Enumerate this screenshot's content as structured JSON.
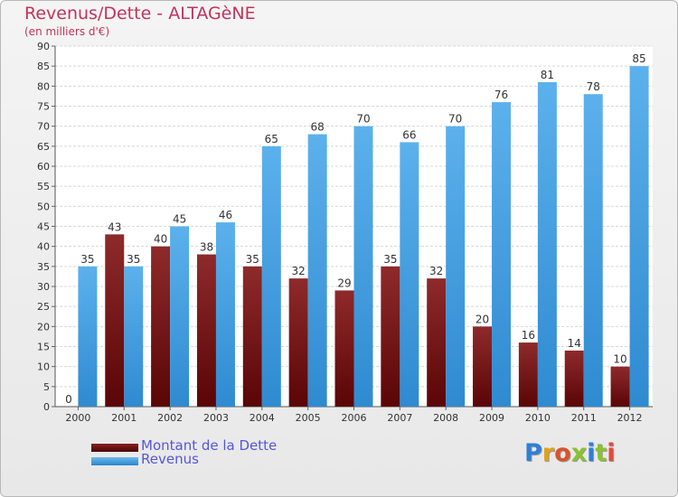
{
  "header": {
    "title": "Revenus/Dette - ALTAGèNE",
    "subtitle": "(en milliers d'€)"
  },
  "legend": {
    "items": [
      {
        "label": "Montant de la Dette",
        "color": "#6d0f10"
      },
      {
        "label": "Revenus",
        "color": "#3d9de0"
      }
    ]
  },
  "logo": {
    "text": "Proxiti",
    "colors": [
      "#2e7fd6",
      "#e0a21b",
      "#d9532b",
      "#8ac232",
      "#2e7fd6",
      "#8ac232",
      "#e24a3a"
    ]
  },
  "chart_data": {
    "type": "bar",
    "title": "Revenus/Dette - ALTAGèNE",
    "ylabel": "(en milliers d'€)",
    "xlabel": "",
    "categories": [
      "2000",
      "2001",
      "2002",
      "2003",
      "2004",
      "2005",
      "2006",
      "2007",
      "2008",
      "2009",
      "2010",
      "2011",
      "2012"
    ],
    "series": [
      {
        "name": "Montant de la Dette",
        "color": "#6d0f10",
        "values": [
          0,
          43,
          40,
          38,
          35,
          32,
          29,
          35,
          32,
          20,
          16,
          14,
          10
        ]
      },
      {
        "name": "Revenus",
        "color": "#3d9de0",
        "values": [
          35,
          35,
          45,
          46,
          65,
          68,
          70,
          66,
          70,
          76,
          81,
          78,
          85
        ]
      }
    ],
    "ylim": [
      0,
      90
    ],
    "yticks": [
      0,
      5,
      10,
      15,
      20,
      25,
      30,
      35,
      40,
      45,
      50,
      55,
      60,
      65,
      70,
      75,
      80,
      85,
      90
    ],
    "grid": true,
    "legend_position": "bottom-left"
  }
}
